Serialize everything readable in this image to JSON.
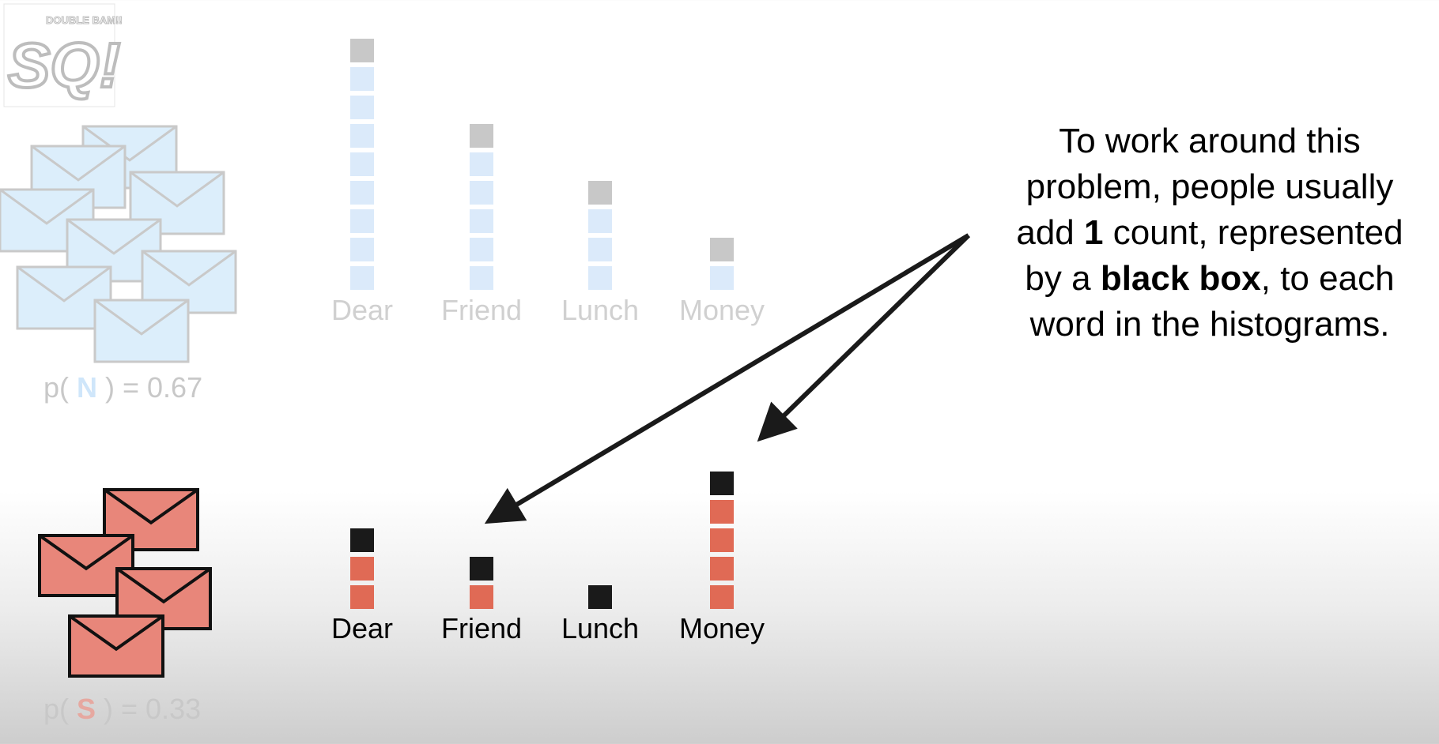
{
  "logo": {
    "main": "SQ!",
    "small": "DOUBLE BAM!!"
  },
  "normal": {
    "prob_prefix": "p( ",
    "class_letter": "N",
    "prob_suffix": " ) = 0.67",
    "envelope_color": "#dceefb",
    "words": [
      "Dear",
      "Friend",
      "Lunch",
      "Money"
    ],
    "counts": [
      8,
      5,
      3,
      1
    ],
    "pseudo_counts": [
      1,
      1,
      1,
      1
    ]
  },
  "spam": {
    "prob_prefix": "p( ",
    "class_letter": "S",
    "prob_suffix": " ) = 0.33",
    "envelope_color": "#e8867a",
    "words": [
      "Dear",
      "Friend",
      "Lunch",
      "Money"
    ],
    "counts": [
      2,
      1,
      0,
      4
    ],
    "pseudo_counts": [
      1,
      1,
      1,
      1
    ]
  },
  "note": {
    "line1": "To work around this",
    "line2": "problem, people usually",
    "line3_pre": "add ",
    "line3_bold": "1",
    "line3_post": " count, represented",
    "line4_pre": "by a ",
    "line4_bold": "black box",
    "line4_post": ", to each",
    "line5": "word in the histograms."
  },
  "colors": {
    "normal_box": "#dbeafa",
    "normal_pseudo": "#c8c8c8",
    "normal_label": "#d0d0d0",
    "spam_box": "#e06a55",
    "pseudo_box": "#1a1a1a",
    "spam_label": "#000000",
    "arrow": "#1a1a1a"
  }
}
